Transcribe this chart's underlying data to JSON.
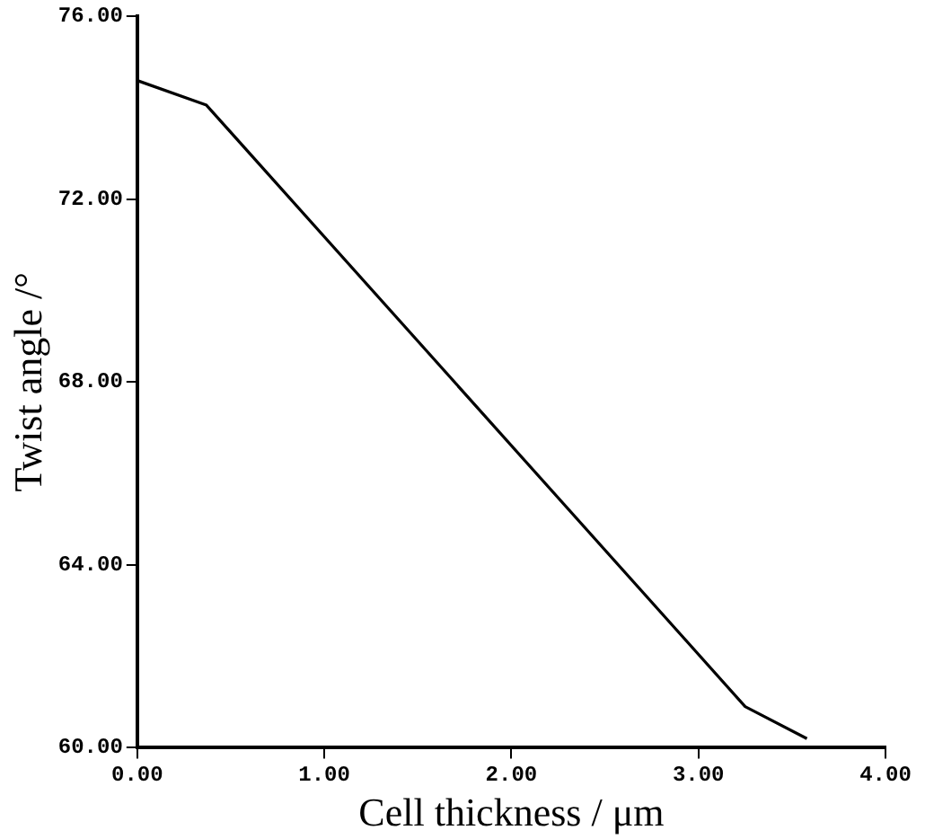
{
  "chart_data": {
    "type": "line",
    "xlabel": "Cell thickness / μm",
    "ylabel": "Twist angle /°",
    "x": [
      0,
      0.37,
      3.25,
      3.58
    ],
    "series": [
      {
        "color": "#000000",
        "values": [
          74.6,
          74.06,
          60.9,
          60.2
        ]
      }
    ],
    "xlim": [
      0,
      4
    ],
    "xticks": [
      {
        "value": 0,
        "label": "0.00"
      },
      {
        "value": 1,
        "label": "1.00"
      },
      {
        "value": 2,
        "label": "2.00"
      },
      {
        "value": 3,
        "label": "3.00"
      },
      {
        "value": 4,
        "label": "4.00"
      }
    ],
    "ylim": [
      60,
      76
    ],
    "yticks": [
      {
        "value": 60,
        "label": "60.00"
      },
      {
        "value": 64,
        "label": "64.00"
      },
      {
        "value": 68,
        "label": "68.00"
      },
      {
        "value": 72,
        "label": "72.00"
      },
      {
        "value": 76,
        "label": "76.00"
      }
    ],
    "grid": false,
    "legend": false,
    "marker": "none",
    "line_style": "solid"
  }
}
